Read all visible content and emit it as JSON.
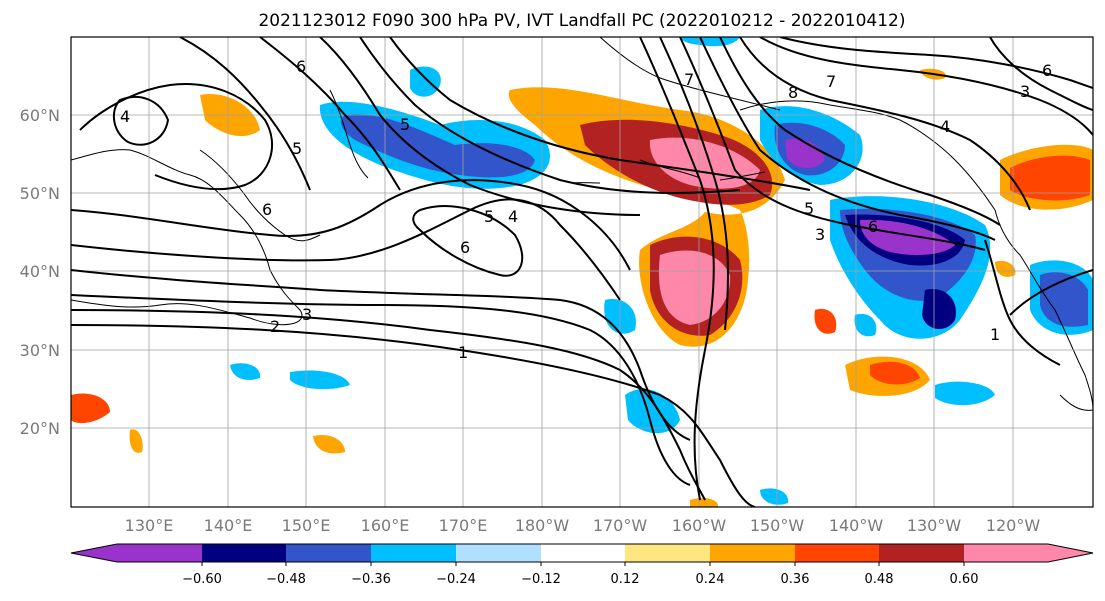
{
  "title": "2021123012 F090 300 hPa PV, IVT Landfall PC (2022010212 - 2022010412)",
  "lat_labels": [
    "60°N",
    "50°N",
    "40°N",
    "30°N",
    "20°N"
  ],
  "lon_labels": [
    "130°E",
    "140°E",
    "150°E",
    "160°E",
    "170°E",
    "180°W",
    "170°W",
    "160°W",
    "150°W",
    "140°W",
    "130°W",
    "120°W"
  ],
  "contour_labels": [
    "6",
    "5",
    "6",
    "7",
    "8",
    "7",
    "6",
    "5",
    "4",
    "3",
    "6",
    "5",
    "4",
    "3",
    "2",
    "1",
    "6",
    "5",
    "4",
    "1",
    "3"
  ],
  "colorbar": {
    "ticks": [
      "−0.60",
      "−0.48",
      "−0.36",
      "−0.24",
      "−0.12",
      "0.12",
      "0.24",
      "0.36",
      "0.48",
      "0.60"
    ],
    "colors": [
      "#9933CC",
      "#000080",
      "#3355CC",
      "#00BFFF",
      "#B0E0FF",
      "#FFFFFF",
      "#FFE680",
      "#FFA500",
      "#FF4500",
      "#B22222",
      "#FF88AA"
    ]
  }
}
